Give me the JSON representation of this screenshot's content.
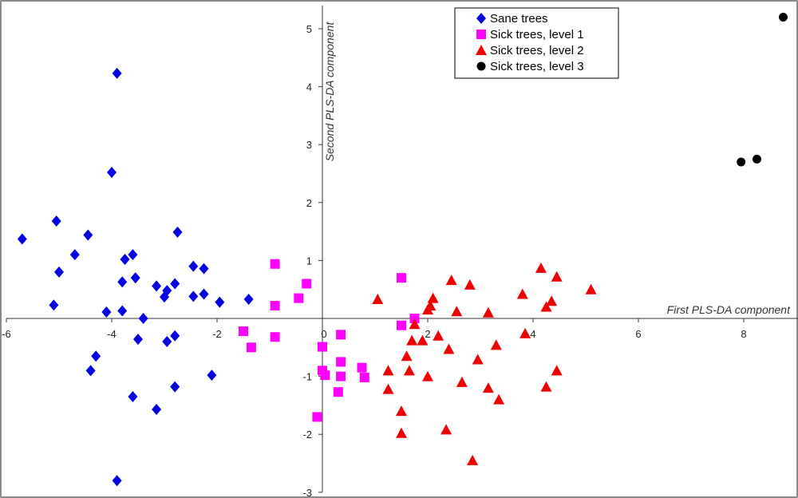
{
  "chart_data": {
    "type": "scatter",
    "title": "",
    "xlabel": "First PLS-DA component",
    "ylabel": "Second PLS-DA component",
    "xlim": [
      -6,
      9
    ],
    "ylim": [
      -3,
      5.4
    ],
    "xticks": [
      -6,
      -4,
      -2,
      0,
      2,
      4,
      6,
      8
    ],
    "yticks": [
      -3,
      -2,
      -1,
      0,
      1,
      2,
      3,
      4,
      5
    ],
    "grid": false,
    "legend_position": "top-center",
    "series": [
      {
        "name": "Sane trees",
        "marker": "diamond",
        "color": "#0000e0",
        "points": [
          [
            -3.9,
            4.23
          ],
          [
            -4.0,
            2.52
          ],
          [
            -5.7,
            1.37
          ],
          [
            -5.05,
            1.68
          ],
          [
            -4.45,
            1.44
          ],
          [
            -2.75,
            1.49
          ],
          [
            -5.0,
            0.8
          ],
          [
            -4.7,
            1.1
          ],
          [
            -3.6,
            1.1
          ],
          [
            -3.75,
            1.02
          ],
          [
            -2.45,
            0.9
          ],
          [
            -2.25,
            0.86
          ],
          [
            -3.8,
            0.63
          ],
          [
            -3.55,
            0.7
          ],
          [
            -3.15,
            0.56
          ],
          [
            -2.95,
            0.48
          ],
          [
            -2.8,
            0.6
          ],
          [
            -3.0,
            0.37
          ],
          [
            -2.45,
            0.38
          ],
          [
            -2.25,
            0.42
          ],
          [
            -1.95,
            0.28
          ],
          [
            -5.1,
            0.23
          ],
          [
            -4.1,
            0.11
          ],
          [
            -3.8,
            0.13
          ],
          [
            -3.4,
            0.0
          ],
          [
            -1.4,
            0.33
          ],
          [
            -3.5,
            -0.36
          ],
          [
            -2.95,
            -0.4
          ],
          [
            -2.8,
            -0.3
          ],
          [
            -4.3,
            -0.65
          ],
          [
            -4.4,
            -0.9
          ],
          [
            -2.1,
            -0.98
          ],
          [
            -3.6,
            -1.35
          ],
          [
            -2.8,
            -1.18
          ],
          [
            -3.15,
            -1.57
          ],
          [
            -3.9,
            -2.8
          ]
        ]
      },
      {
        "name": "Sick trees, level 1",
        "marker": "square",
        "color": "#ff00ff",
        "points": [
          [
            -0.9,
            0.94
          ],
          [
            -0.3,
            0.6
          ],
          [
            -0.45,
            0.35
          ],
          [
            -0.9,
            0.22
          ],
          [
            1.5,
            0.7
          ],
          [
            1.75,
            0.0
          ],
          [
            1.5,
            -0.12
          ],
          [
            -1.5,
            -0.22
          ],
          [
            -1.35,
            -0.5
          ],
          [
            -0.9,
            -0.32
          ],
          [
            0.35,
            -0.28
          ],
          [
            0.0,
            -0.49
          ],
          [
            0.35,
            -0.75
          ],
          [
            0.0,
            -0.9
          ],
          [
            0.05,
            -0.98
          ],
          [
            0.35,
            -1.0
          ],
          [
            0.75,
            -0.85
          ],
          [
            0.8,
            -1.02
          ],
          [
            0.3,
            -1.27
          ],
          [
            -0.1,
            -1.7
          ]
        ]
      },
      {
        "name": "Sick trees, level 2",
        "marker": "triangle",
        "color": "#ee0000",
        "points": [
          [
            1.05,
            0.33
          ],
          [
            2.45,
            0.66
          ],
          [
            2.8,
            0.58
          ],
          [
            2.1,
            0.35
          ],
          [
            2.05,
            0.22
          ],
          [
            2.0,
            0.15
          ],
          [
            2.55,
            0.12
          ],
          [
            3.15,
            0.1
          ],
          [
            4.15,
            0.87
          ],
          [
            4.45,
            0.72
          ],
          [
            3.8,
            0.42
          ],
          [
            4.35,
            0.3
          ],
          [
            4.25,
            0.2
          ],
          [
            5.1,
            0.5
          ],
          [
            1.75,
            -0.1
          ],
          [
            1.7,
            -0.38
          ],
          [
            1.9,
            -0.38
          ],
          [
            2.2,
            -0.3
          ],
          [
            3.85,
            -0.26
          ],
          [
            1.6,
            -0.65
          ],
          [
            2.4,
            -0.53
          ],
          [
            3.3,
            -0.46
          ],
          [
            2.95,
            -0.71
          ],
          [
            1.25,
            -0.9
          ],
          [
            1.65,
            -0.9
          ],
          [
            2.0,
            -1.0
          ],
          [
            2.65,
            -1.1
          ],
          [
            3.15,
            -1.2
          ],
          [
            4.45,
            -0.9
          ],
          [
            4.25,
            -1.18
          ],
          [
            1.25,
            -1.22
          ],
          [
            3.35,
            -1.4
          ],
          [
            1.5,
            -1.6
          ],
          [
            2.35,
            -1.92
          ],
          [
            1.5,
            -1.98
          ],
          [
            2.85,
            -2.45
          ]
        ]
      },
      {
        "name": "Sick trees, level 3",
        "marker": "circle",
        "color": "#000000",
        "points": [
          [
            8.75,
            5.2
          ],
          [
            8.25,
            2.75
          ],
          [
            7.95,
            2.7
          ]
        ]
      }
    ]
  }
}
